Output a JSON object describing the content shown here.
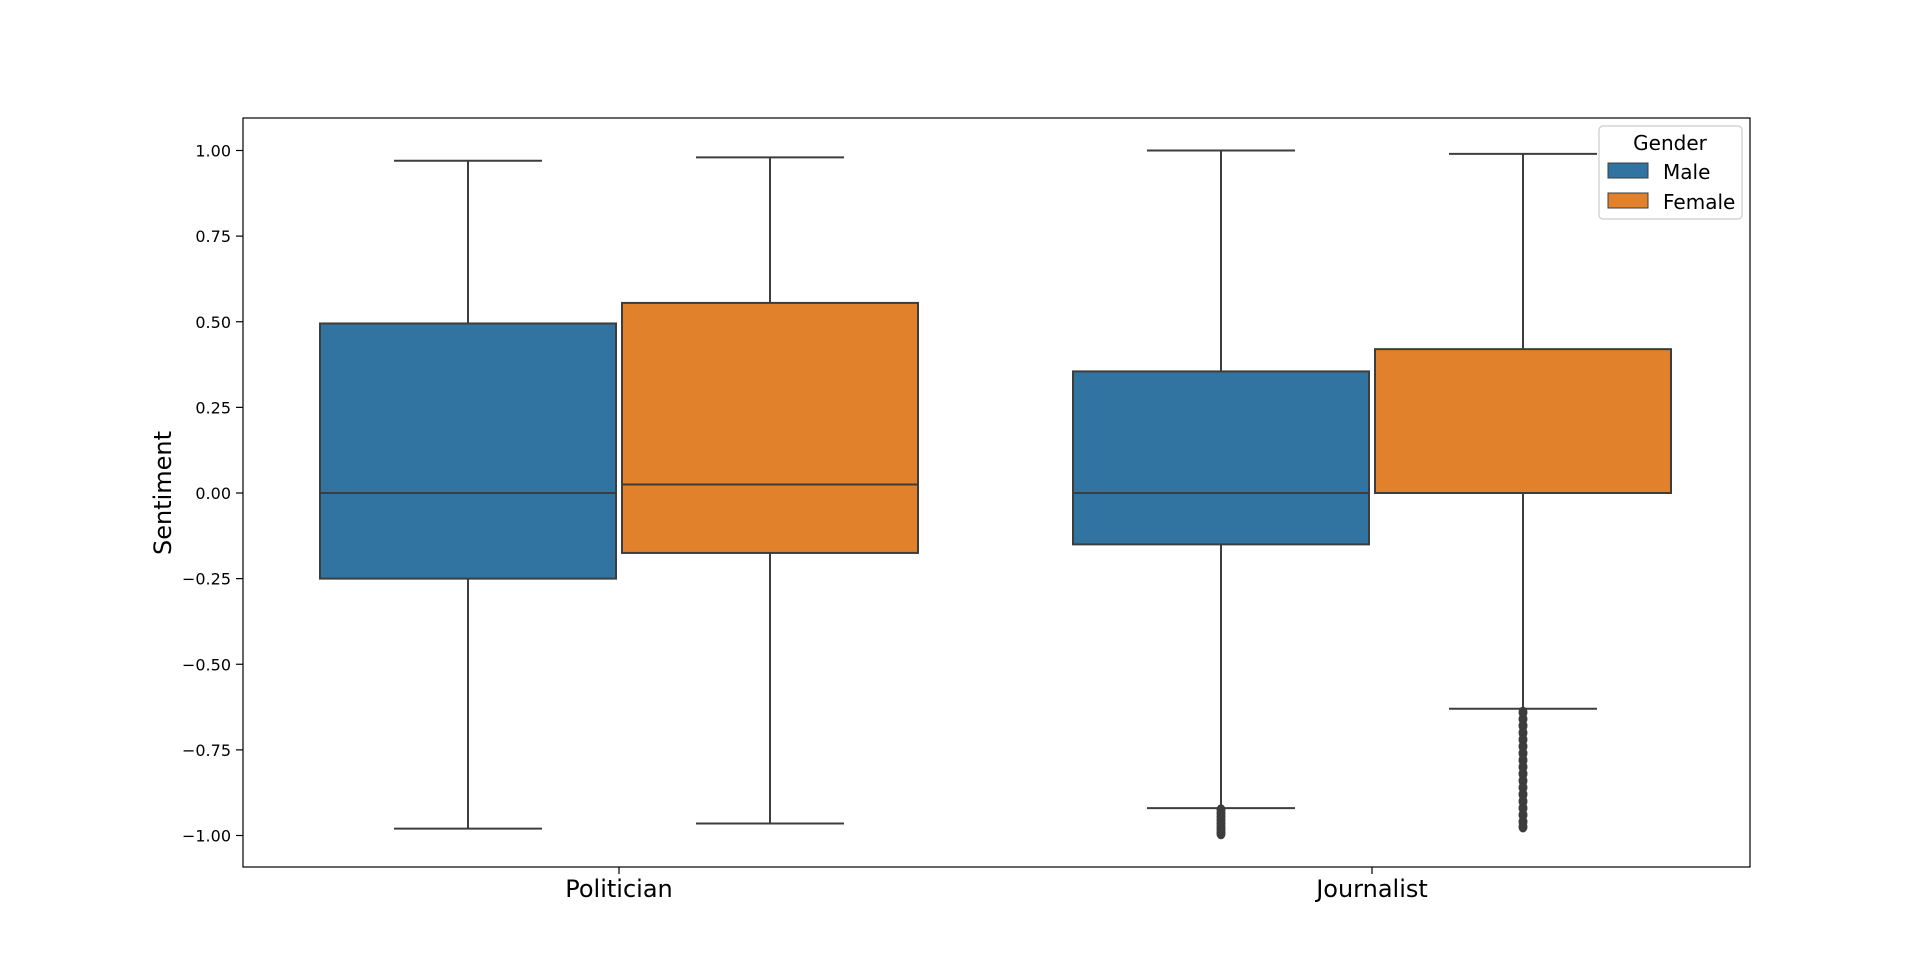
{
  "chart_data": {
    "type": "box",
    "xlabel": "",
    "ylabel": "Sentiment",
    "categories": [
      "Politician",
      "Journalist"
    ],
    "ylim": [
      -1.1,
      1.1
    ],
    "yticks": [
      1.0,
      0.75,
      0.5,
      0.25,
      0.0,
      -0.25,
      -0.5,
      -0.75,
      -1.0
    ],
    "ytick_labels": [
      "1.00",
      "0.75",
      "0.50",
      "0.25",
      "0.00",
      "−0.25",
      "−0.50",
      "−0.75",
      "−1.00"
    ],
    "grid": false,
    "legend": {
      "title": "Gender",
      "position": "top-right",
      "entries": [
        "Male",
        "Female"
      ]
    },
    "series": [
      {
        "name": "Male",
        "color": "#3274a1",
        "boxes": [
          {
            "category": "Politician",
            "whisker_low": -0.98,
            "q1": -0.25,
            "median": 0.0,
            "q3": 0.495,
            "whisker_high": 0.97,
            "outliers": []
          },
          {
            "category": "Journalist",
            "whisker_low": -0.92,
            "q1": -0.15,
            "median": 0.0,
            "q3": 0.355,
            "whisker_high": 1.0,
            "outliers": [
              -0.925,
              -0.935,
              -0.945,
              -0.955,
              -0.965,
              -0.975,
              -0.985,
              -0.995
            ]
          }
        ]
      },
      {
        "name": "Female",
        "color": "#e1812c",
        "boxes": [
          {
            "category": "Politician",
            "whisker_low": -0.965,
            "q1": -0.175,
            "median": 0.025,
            "q3": 0.555,
            "whisker_high": 0.98,
            "outliers": []
          },
          {
            "category": "Journalist",
            "whisker_low": -0.63,
            "q1": 0.0,
            "median": 0.0,
            "q3": 0.42,
            "whisker_high": 0.99,
            "outliers": [
              -0.64,
              -0.66,
              -0.68,
              -0.7,
              -0.72,
              -0.74,
              -0.76,
              -0.78,
              -0.8,
              -0.82,
              -0.84,
              -0.86,
              -0.88,
              -0.9,
              -0.92,
              -0.94,
              -0.96,
              -0.975
            ]
          }
        ]
      }
    ]
  }
}
